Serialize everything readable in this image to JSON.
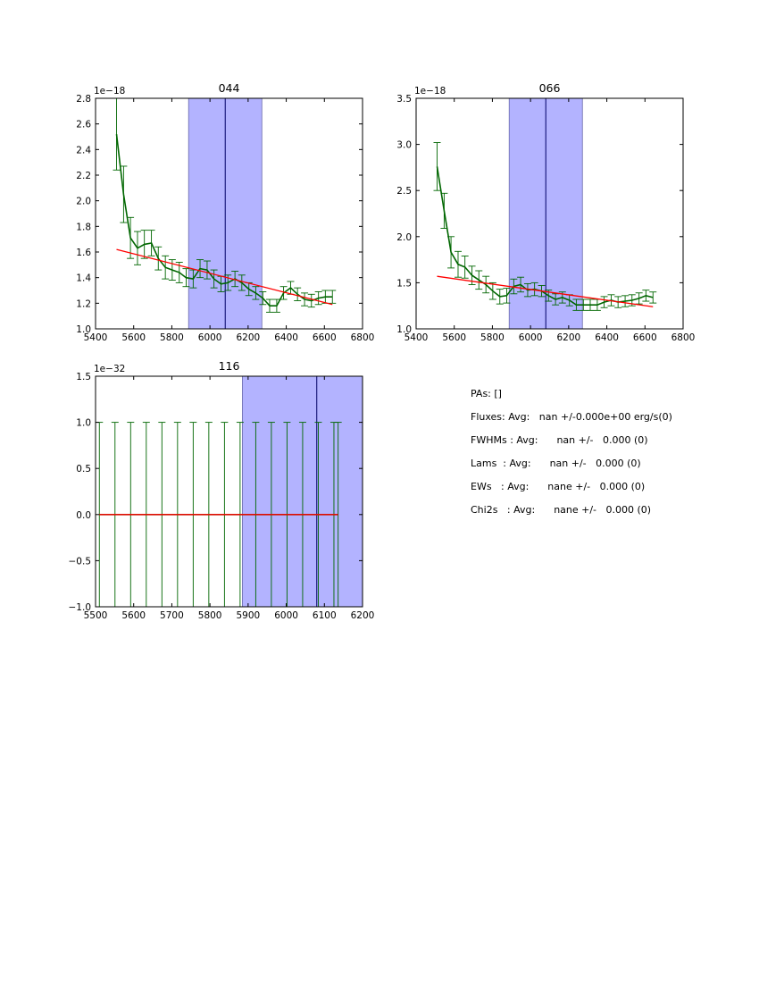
{
  "chart_data": [
    {
      "type": "line",
      "title": "044",
      "scale_label": "1e−18",
      "xlim": [
        5400,
        6800
      ],
      "ylim": [
        1.0,
        2.8
      ],
      "xticks": [
        5400,
        5600,
        5800,
        6000,
        6200,
        6400,
        6600,
        6800
      ],
      "xtick_labels": [
        "5400",
        "5600",
        "5800",
        "6000",
        "6200",
        "6400",
        "6600",
        "6800"
      ],
      "yticks": [
        1.0,
        1.2,
        1.4,
        1.6,
        1.8,
        2.0,
        2.2,
        2.4,
        2.6,
        2.8
      ],
      "ytick_labels": [
        "1.0",
        "1.2",
        "1.4",
        "1.6",
        "1.8",
        "2.0",
        "2.2",
        "2.4",
        "2.6",
        "2.8"
      ],
      "shade_range": [
        5888,
        6272
      ],
      "vline": 6080,
      "series": [
        {
          "name": "spectrum",
          "x": [
            5510,
            5547,
            5583,
            5620,
            5656,
            5693,
            5729,
            5766,
            5802,
            5839,
            5875,
            5912,
            5948,
            5985,
            6021,
            6058,
            6094,
            6131,
            6167,
            6204,
            6240,
            6277,
            6313,
            6350,
            6386,
            6423,
            6459,
            6496,
            6532,
            6569,
            6605,
            6642
          ],
          "y": [
            2.52,
            2.05,
            1.71,
            1.63,
            1.66,
            1.67,
            1.55,
            1.48,
            1.46,
            1.44,
            1.4,
            1.39,
            1.47,
            1.46,
            1.39,
            1.35,
            1.36,
            1.39,
            1.36,
            1.31,
            1.28,
            1.24,
            1.18,
            1.18,
            1.28,
            1.32,
            1.27,
            1.23,
            1.22,
            1.24,
            1.25,
            1.25
          ],
          "err": [
            0.28,
            0.22,
            0.16,
            0.13,
            0.11,
            0.1,
            0.09,
            0.09,
            0.08,
            0.08,
            0.07,
            0.07,
            0.07,
            0.07,
            0.07,
            0.06,
            0.06,
            0.06,
            0.06,
            0.05,
            0.05,
            0.05,
            0.05,
            0.05,
            0.05,
            0.05,
            0.05,
            0.05,
            0.05,
            0.05,
            0.05,
            0.05
          ]
        },
        {
          "name": "fit",
          "x": [
            5510,
            6642
          ],
          "y": [
            1.62,
            1.19
          ]
        }
      ]
    },
    {
      "type": "line",
      "title": "066",
      "scale_label": "1e−18",
      "xlim": [
        5400,
        6800
      ],
      "ylim": [
        1.0,
        3.5
      ],
      "xticks": [
        5400,
        5600,
        5800,
        6000,
        6200,
        6400,
        6600,
        6800
      ],
      "xtick_labels": [
        "5400",
        "5600",
        "5800",
        "6000",
        "6200",
        "6400",
        "6600",
        "6800"
      ],
      "yticks": [
        1.0,
        1.5,
        2.0,
        2.5,
        3.0,
        3.5
      ],
      "ytick_labels": [
        "1.0",
        "1.5",
        "2.0",
        "2.5",
        "3.0",
        "3.5"
      ],
      "shade_range": [
        5888,
        6272
      ],
      "vline": 6080,
      "series": [
        {
          "name": "spectrum",
          "x": [
            5510,
            5547,
            5583,
            5620,
            5656,
            5693,
            5729,
            5766,
            5802,
            5839,
            5875,
            5912,
            5948,
            5985,
            6021,
            6058,
            6094,
            6131,
            6167,
            6204,
            6240,
            6277,
            6313,
            6350,
            6386,
            6423,
            6459,
            6496,
            6532,
            6569,
            6605,
            6642
          ],
          "y": [
            2.76,
            2.28,
            1.83,
            1.7,
            1.67,
            1.58,
            1.53,
            1.48,
            1.41,
            1.35,
            1.36,
            1.46,
            1.48,
            1.42,
            1.43,
            1.41,
            1.36,
            1.32,
            1.34,
            1.31,
            1.26,
            1.26,
            1.26,
            1.26,
            1.29,
            1.31,
            1.29,
            1.3,
            1.31,
            1.33,
            1.36,
            1.34
          ],
          "err": [
            0.26,
            0.19,
            0.17,
            0.14,
            0.12,
            0.1,
            0.1,
            0.09,
            0.09,
            0.08,
            0.08,
            0.08,
            0.08,
            0.07,
            0.07,
            0.06,
            0.06,
            0.06,
            0.06,
            0.06,
            0.06,
            0.06,
            0.06,
            0.06,
            0.06,
            0.06,
            0.06,
            0.06,
            0.06,
            0.06,
            0.06,
            0.06
          ]
        },
        {
          "name": "fit",
          "x": [
            5510,
            6642
          ],
          "y": [
            1.57,
            1.24
          ]
        }
      ]
    },
    {
      "type": "line",
      "title": "116",
      "scale_label": "1e−32",
      "xlim": [
        5500,
        6200
      ],
      "ylim": [
        -1.0,
        1.5
      ],
      "xticks": [
        5500,
        5600,
        5700,
        5800,
        5900,
        6000,
        6100,
        6200
      ],
      "xtick_labels": [
        "5500",
        "5600",
        "5700",
        "5800",
        "5900",
        "6000",
        "6100",
        "6200"
      ],
      "yticks": [
        -1.0,
        -0.5,
        0.0,
        0.5,
        1.0,
        1.5
      ],
      "ytick_labels": [
        "−1.0",
        "−0.5",
        "0.0",
        "0.5",
        "1.0",
        "1.5"
      ],
      "shade_range": [
        5885,
        6200
      ],
      "vline": 6080,
      "series": [
        {
          "name": "spectrum",
          "x": [
            5510,
            5551,
            5592,
            5633,
            5674,
            5715,
            5756,
            5797,
            5838,
            5879,
            5920,
            5961,
            6002,
            6043,
            6084,
            6125,
            6136
          ],
          "y": [
            0,
            0,
            0,
            0,
            0,
            0,
            0,
            0,
            0,
            0,
            0,
            0,
            0,
            0,
            0,
            0,
            0
          ],
          "err": [
            1,
            1,
            1,
            1,
            1,
            1,
            1,
            1,
            1,
            1,
            1,
            1,
            1,
            1,
            1,
            1,
            1
          ]
        },
        {
          "name": "fit",
          "x": [
            5510,
            6136
          ],
          "y": [
            0,
            0
          ]
        }
      ]
    }
  ],
  "colors": {
    "data": "#006600",
    "fit": "#ff0000",
    "shade": "#b3b3ff",
    "vline": "#000066"
  },
  "summary": {
    "pas": "PAs: []",
    "fluxes": "Fluxes: Avg:   nan +/-0.000e+00 erg/s(0)",
    "fwhms": "FWHMs : Avg:      nan +/-   0.000 (0)",
    "lams": "Lams  : Avg:      nan +/-   0.000 (0)",
    "ews": "EWs   : Avg:      nane +/-   0.000 (0)",
    "chi2s": "Chi2s   : Avg:      nane +/-   0.000 (0)"
  }
}
